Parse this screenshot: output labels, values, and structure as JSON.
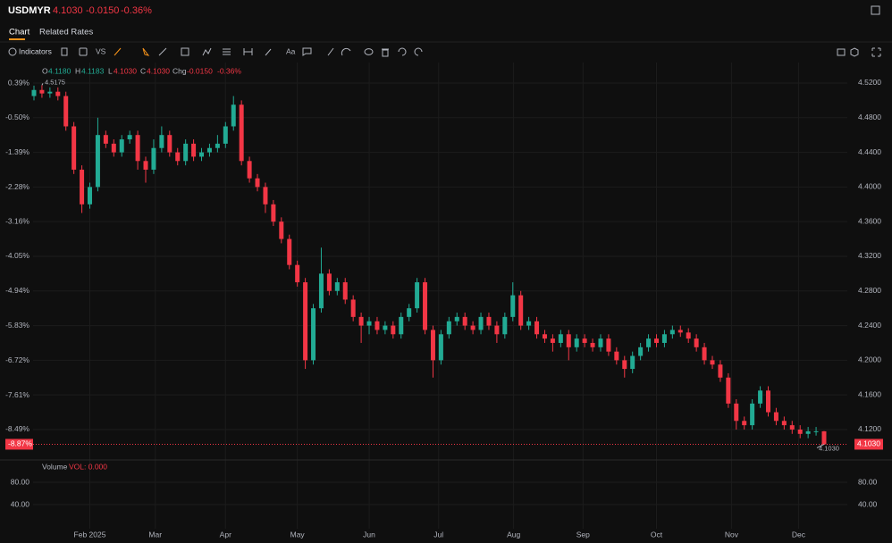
{
  "header": {
    "symbol": "USDMYR",
    "price": "4.1030",
    "change": "-0.0150",
    "change_pct": "-0.36%"
  },
  "tabs": [
    "Chart",
    "Related Rates"
  ],
  "toolbar": {
    "indicators": "Indicators",
    "compare": "VS",
    "text_tool": "Aa"
  },
  "legend": {
    "o_label": "O",
    "o": "4.1180",
    "h_label": "H",
    "h": "4.1183",
    "l_label": "L",
    "l": "4.1030",
    "c_label": "C",
    "c": "4.1030",
    "chg_label": "Chg",
    "chg": "-0.0150",
    "chg_pct": "-0.36%"
  },
  "price_tag": "4.1030",
  "pct_tag": "-8.87%",
  "chart_data": [
    {
      "type": "candlestick",
      "up_color": "#22ab94",
      "down_color": "#f23645",
      "grid": true,
      "xlim": [
        0,
        99
      ],
      "xticks": [
        {
          "value": 7,
          "label": "Feb 2025"
        },
        {
          "value": 15.2,
          "label": "Mar"
        },
        {
          "value": 24,
          "label": "Apr"
        },
        {
          "value": 33,
          "label": "May"
        },
        {
          "value": 42,
          "label": "Jun"
        },
        {
          "value": 50.7,
          "label": "Jul"
        },
        {
          "value": 60.1,
          "label": "Aug"
        },
        {
          "value": 68.8,
          "label": "Sep"
        },
        {
          "value": 78,
          "label": "Oct"
        },
        {
          "value": 87.4,
          "label": "Nov"
        },
        {
          "value": 95.8,
          "label": "Dec"
        }
      ],
      "ylim": [
        4.088,
        4.5303
      ],
      "yticks": [
        {
          "value": 4.52,
          "label": "4.5200"
        },
        {
          "value": 4.48,
          "label": "4.4800"
        },
        {
          "value": 4.44,
          "label": "4.4400"
        },
        {
          "value": 4.4,
          "label": "4.4000"
        },
        {
          "value": 4.36,
          "label": "4.3600"
        },
        {
          "value": 4.32,
          "label": "4.3200"
        },
        {
          "value": 4.28,
          "label": "4.2800"
        },
        {
          "value": 4.24,
          "label": "4.2400"
        },
        {
          "value": 4.2,
          "label": "4.2000"
        },
        {
          "value": 4.16,
          "label": "4.1600"
        },
        {
          "value": 4.12,
          "label": "4.1200"
        }
      ],
      "y2lim": [
        -9.2,
        0.619
      ],
      "y2ticks": [
        {
          "value": 0.39,
          "label": "0.39%"
        },
        {
          "value": -0.5,
          "label": "-0.50%"
        },
        {
          "value": -1.39,
          "label": "-1.39%"
        },
        {
          "value": -2.28,
          "label": "-2.28%"
        },
        {
          "value": -3.16,
          "label": "-3.16%"
        },
        {
          "value": -4.05,
          "label": "-4.05%"
        },
        {
          "value": -4.94,
          "label": "-4.94%"
        },
        {
          "value": -5.83,
          "label": "-5.83%"
        },
        {
          "value": -6.72,
          "label": "-6.72%"
        },
        {
          "value": -7.61,
          "label": "-7.61%"
        },
        {
          "value": -8.49,
          "label": "-8.49%"
        }
      ],
      "last_price": 4.103,
      "annotations": [
        {
          "value": 4.5175,
          "label": "4.5175"
        },
        {
          "value": 4.103,
          "label": "4.1030"
        }
      ],
      "open": [
        4.505,
        4.512,
        4.508,
        4.51,
        4.505,
        4.47,
        4.42,
        4.38,
        4.4,
        4.46,
        4.45,
        4.44,
        4.455,
        4.46,
        4.43,
        4.42,
        4.445,
        4.46,
        4.44,
        4.43,
        4.45,
        4.435,
        4.44,
        4.445,
        4.45,
        4.47,
        4.495,
        4.43,
        4.41,
        4.4,
        4.38,
        4.36,
        4.34,
        4.31,
        4.29,
        4.2,
        4.26,
        4.3,
        4.28,
        4.29,
        4.27,
        4.25,
        4.24,
        4.245,
        4.235,
        4.24,
        4.23,
        4.25,
        4.26,
        4.29,
        4.235,
        4.2,
        4.23,
        4.245,
        4.25,
        4.24,
        4.235,
        4.25,
        4.24,
        4.23,
        4.25,
        4.275,
        4.24,
        4.245,
        4.23,
        4.225,
        4.22,
        4.23,
        4.215,
        4.225,
        4.22,
        4.215,
        4.225,
        4.21,
        4.2,
        4.19,
        4.205,
        4.215,
        4.225,
        4.22,
        4.23,
        4.235,
        4.232,
        4.225,
        4.215,
        4.2,
        4.195,
        4.18,
        4.15,
        4.13,
        4.125,
        4.15,
        4.165,
        4.14,
        4.13,
        4.125,
        4.12,
        4.115,
        4.118,
        4.118
      ],
      "high": [
        4.517,
        4.5175,
        4.515,
        4.515,
        4.51,
        4.475,
        4.425,
        4.405,
        4.48,
        4.465,
        4.455,
        4.46,
        4.465,
        4.465,
        4.435,
        4.455,
        4.47,
        4.465,
        4.445,
        4.455,
        4.455,
        4.445,
        4.45,
        4.46,
        4.475,
        4.505,
        4.5,
        4.435,
        4.415,
        4.405,
        4.385,
        4.365,
        4.345,
        4.315,
        4.295,
        4.265,
        4.33,
        4.305,
        4.295,
        4.295,
        4.275,
        4.255,
        4.25,
        4.25,
        4.245,
        4.245,
        4.255,
        4.265,
        4.295,
        4.295,
        4.24,
        4.235,
        4.25,
        4.255,
        4.255,
        4.245,
        4.255,
        4.255,
        4.245,
        4.255,
        4.29,
        4.28,
        4.25,
        4.25,
        4.235,
        4.23,
        4.235,
        4.235,
        4.23,
        4.23,
        4.225,
        4.23,
        4.23,
        4.215,
        4.205,
        4.21,
        4.22,
        4.23,
        4.23,
        4.235,
        4.24,
        4.24,
        4.237,
        4.23,
        4.22,
        4.205,
        4.2,
        4.185,
        4.155,
        4.135,
        4.155,
        4.17,
        4.17,
        4.145,
        4.135,
        4.13,
        4.125,
        4.123,
        4.123,
        4.1183
      ],
      "low": [
        4.5,
        4.503,
        4.503,
        4.5,
        4.465,
        4.415,
        4.37,
        4.375,
        4.395,
        4.445,
        4.435,
        4.435,
        4.45,
        4.42,
        4.405,
        4.415,
        4.44,
        4.435,
        4.425,
        4.425,
        4.43,
        4.43,
        4.435,
        4.44,
        4.445,
        4.465,
        4.425,
        4.405,
        4.395,
        4.37,
        4.355,
        4.335,
        4.305,
        4.285,
        4.19,
        4.195,
        4.255,
        4.275,
        4.275,
        4.265,
        4.245,
        4.22,
        4.23,
        4.23,
        4.23,
        4.225,
        4.225,
        4.245,
        4.255,
        4.23,
        4.18,
        4.195,
        4.225,
        4.24,
        4.235,
        4.23,
        4.23,
        4.235,
        4.22,
        4.225,
        4.245,
        4.235,
        4.235,
        4.225,
        4.22,
        4.21,
        4.215,
        4.2,
        4.21,
        4.215,
        4.21,
        4.21,
        4.205,
        4.195,
        4.18,
        4.185,
        4.2,
        4.21,
        4.215,
        4.215,
        4.225,
        4.227,
        4.22,
        4.21,
        4.195,
        4.19,
        4.175,
        4.145,
        4.12,
        4.12,
        4.12,
        4.145,
        4.135,
        4.125,
        4.12,
        4.115,
        4.11,
        4.11,
        4.113,
        4.103
      ],
      "close": [
        4.512,
        4.508,
        4.51,
        4.505,
        4.47,
        4.42,
        4.38,
        4.4,
        4.46,
        4.45,
        4.44,
        4.455,
        4.46,
        4.43,
        4.42,
        4.445,
        4.46,
        4.44,
        4.43,
        4.45,
        4.435,
        4.44,
        4.445,
        4.45,
        4.47,
        4.495,
        4.43,
        4.41,
        4.4,
        4.38,
        4.36,
        4.34,
        4.31,
        4.29,
        4.2,
        4.26,
        4.3,
        4.28,
        4.29,
        4.27,
        4.25,
        4.24,
        4.245,
        4.235,
        4.24,
        4.23,
        4.25,
        4.26,
        4.29,
        4.235,
        4.2,
        4.23,
        4.245,
        4.25,
        4.24,
        4.235,
        4.25,
        4.24,
        4.23,
        4.25,
        4.275,
        4.24,
        4.245,
        4.23,
        4.225,
        4.22,
        4.23,
        4.215,
        4.225,
        4.22,
        4.215,
        4.225,
        4.21,
        4.2,
        4.19,
        4.205,
        4.215,
        4.225,
        4.22,
        4.23,
        4.235,
        4.232,
        4.225,
        4.215,
        4.2,
        4.195,
        4.18,
        4.15,
        4.13,
        4.125,
        4.15,
        4.165,
        4.14,
        4.13,
        4.125,
        4.12,
        4.115,
        4.118,
        4.118,
        4.103
      ]
    },
    {
      "type": "volume",
      "title": "Volume",
      "legend": "VOL: 0.000",
      "ylim": [
        -3.2,
        120
      ],
      "yticks": [
        {
          "value": 80,
          "label": "80.00"
        },
        {
          "value": 40,
          "label": "40.00"
        }
      ]
    }
  ]
}
